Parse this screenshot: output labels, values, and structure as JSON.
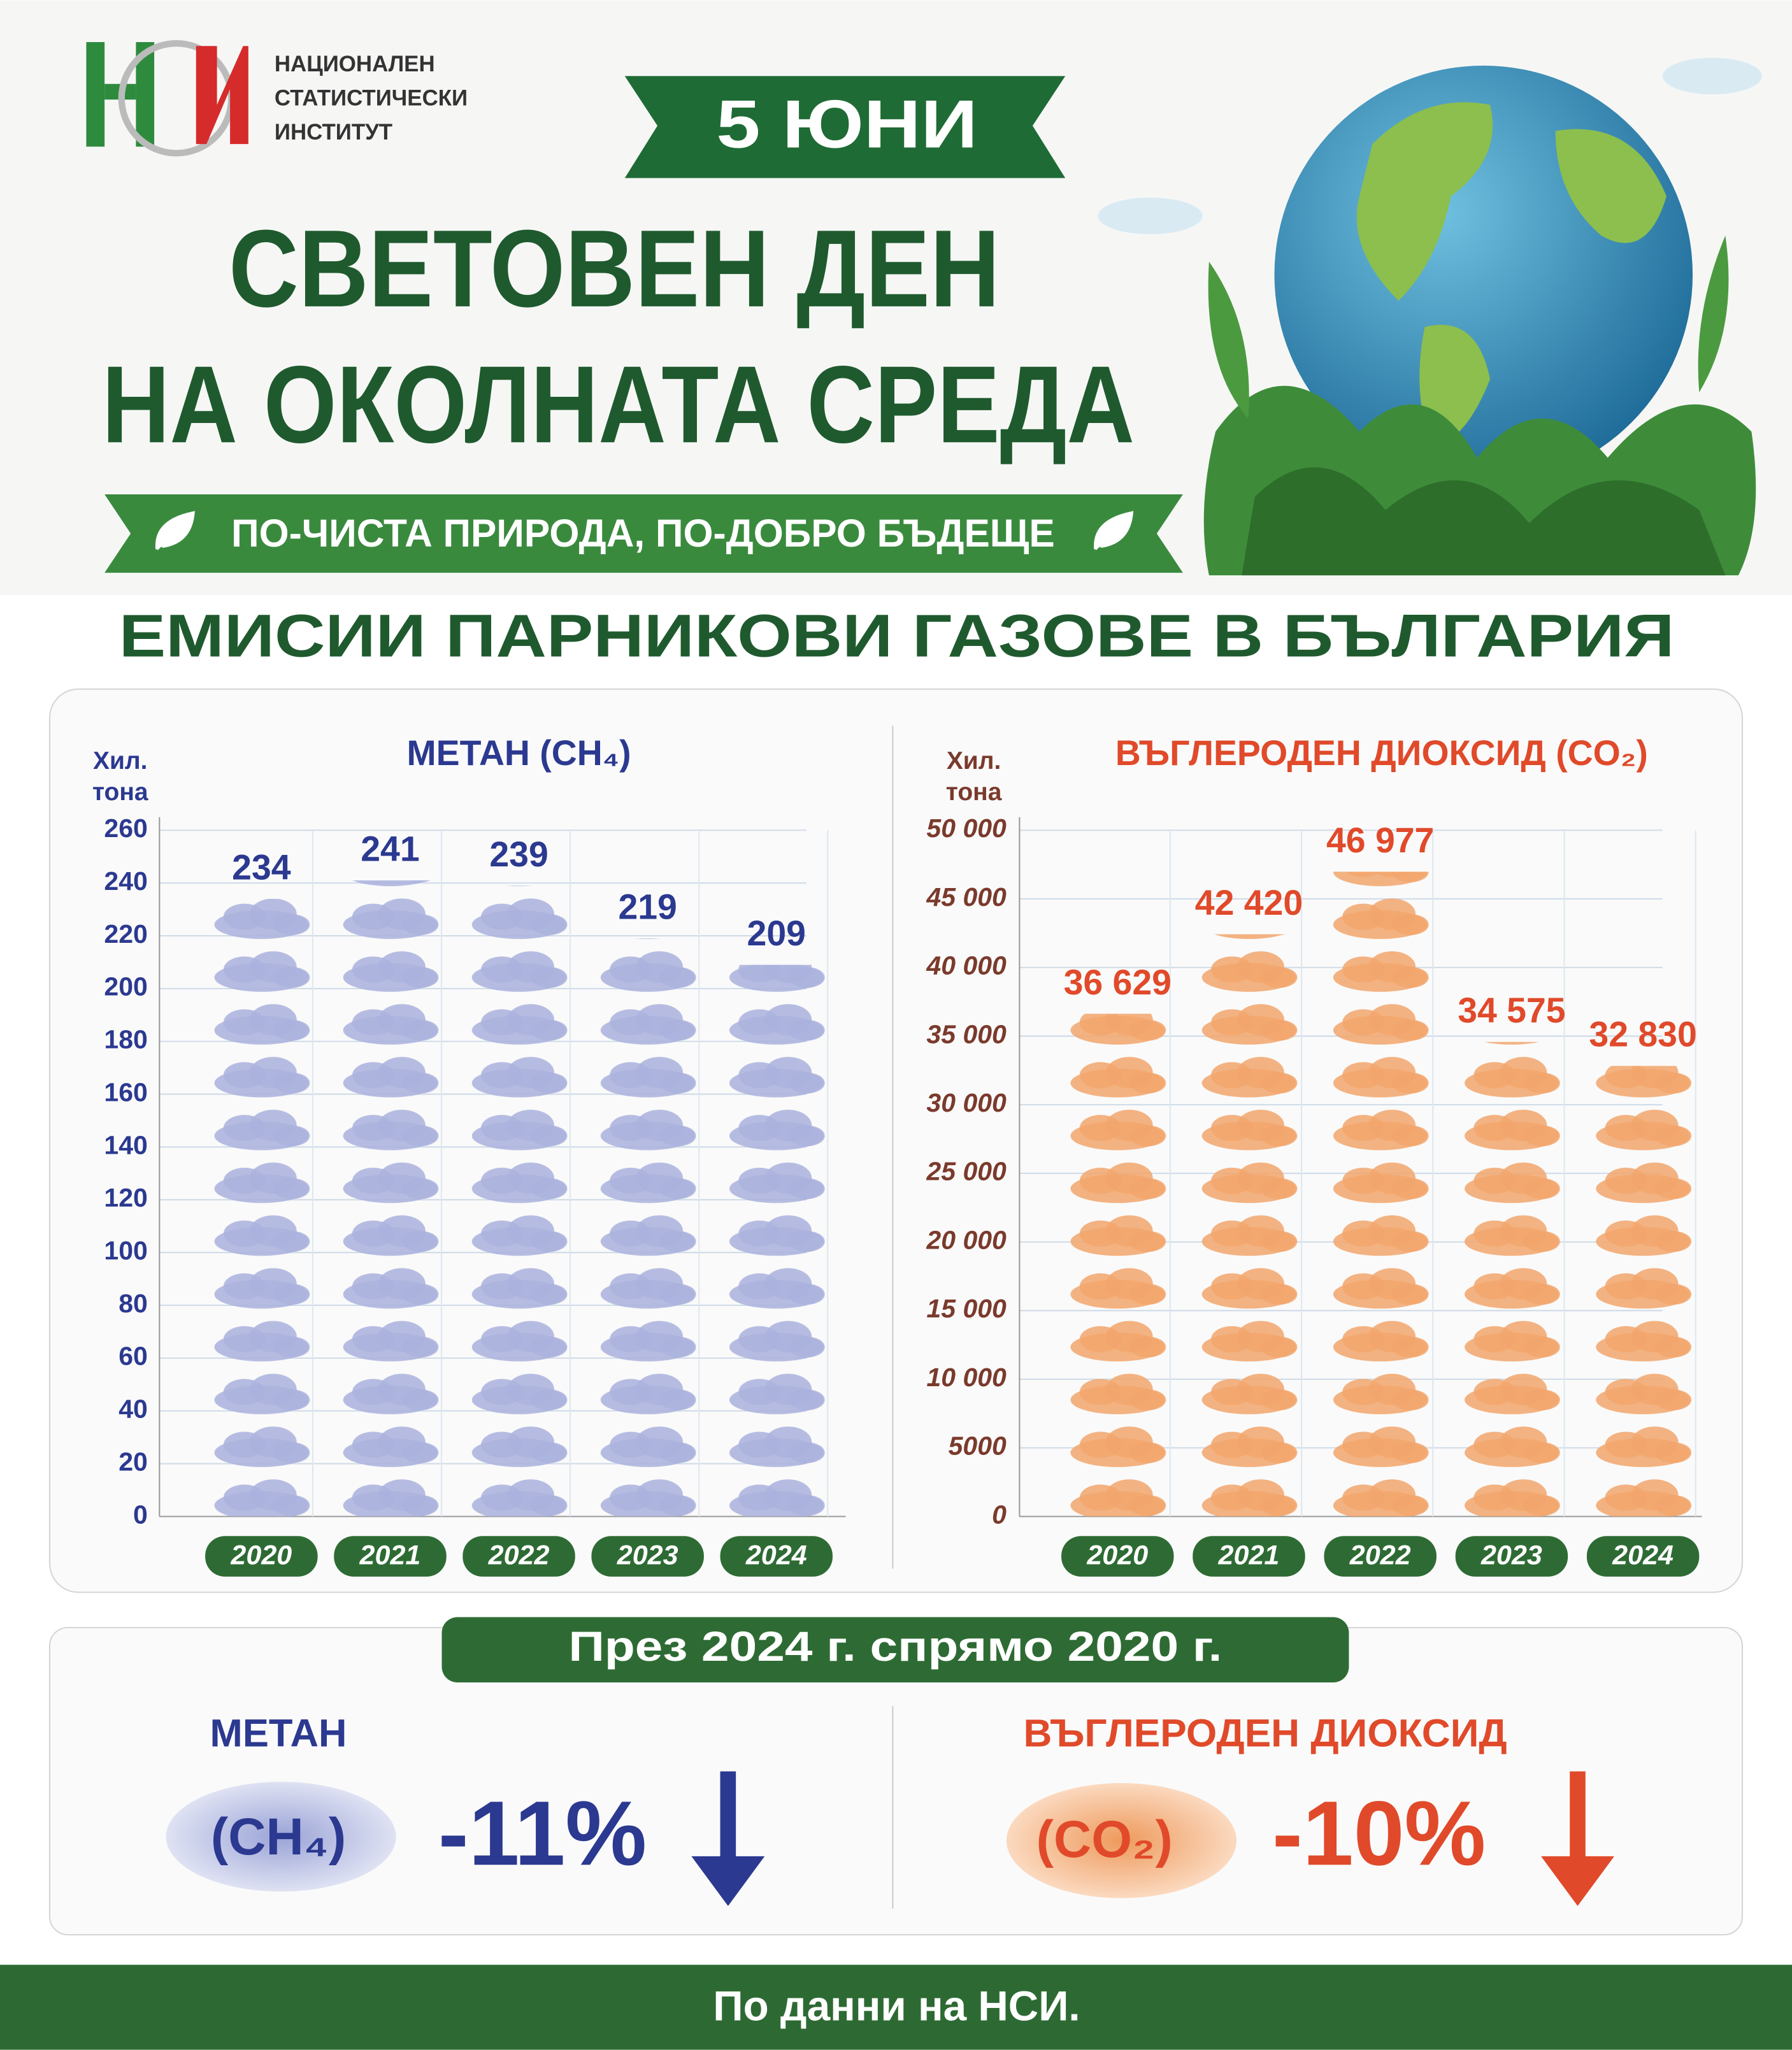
{
  "header": {
    "logo": [
      "НАЦИОНАЛЕН",
      "СТАТИСТИЧЕСКИ",
      "ИНСТИТУТ"
    ],
    "date": "5 ЮНИ",
    "title": [
      "СВЕТОВЕН ДЕН",
      "НА ОКОЛНАТА СРЕДА"
    ],
    "slogan": "ПО-ЧИСТА ПРИРОДА, ПО-ДОБРО БЪДЕЩЕ",
    "headline": "ЕМИСИИ ПАРНИКОВИ ГАЗОВЕ В БЪЛГАРИЯ"
  },
  "chart_data": [
    {
      "type": "bar",
      "title": "МЕТАН (CH₄)",
      "ylabel": [
        "Хил.",
        "тона"
      ],
      "categories": [
        "2020",
        "2021",
        "2022",
        "2023",
        "2024"
      ],
      "values": [
        234,
        241,
        239,
        219,
        209
      ],
      "color": "#aab2dd",
      "ylim": [
        0,
        260
      ],
      "yticks": [
        0,
        20,
        40,
        60,
        80,
        100,
        120,
        140,
        160,
        180,
        200,
        220,
        240,
        260
      ],
      "grid": true
    },
    {
      "type": "bar",
      "title": "ВЪГЛЕРОДЕН ДИОКСИД (CO₂)",
      "ylabel": [
        "Хил.",
        "тона"
      ],
      "categories": [
        "2020",
        "2021",
        "2022",
        "2023",
        "2024"
      ],
      "values": [
        36629,
        42420,
        46977,
        34575,
        32830
      ],
      "value_labels": [
        "36 629",
        "42 420",
        "46 977",
        "34 575",
        "32 830"
      ],
      "color": "#f2a66c",
      "ylim": [
        0,
        50000
      ],
      "yticks": [
        0,
        5000,
        {
          "value": 10000,
          "label": "10 000"
        },
        {
          "value": 15000,
          "label": "15 000"
        },
        {
          "value": 20000,
          "label": "20 000"
        },
        {
          "value": 25000,
          "label": "25 000"
        },
        {
          "value": 30000,
          "label": "30 000"
        },
        {
          "value": 35000,
          "label": "35 000"
        },
        {
          "value": 40000,
          "label": "40 000"
        },
        {
          "value": 45000,
          "label": "45 000"
        },
        {
          "value": 50000,
          "label": "50 000"
        }
      ],
      "grid": true
    }
  ],
  "summary": {
    "heading": "През 2024 г. спрямо 2020 г.",
    "items": [
      {
        "name": "МЕТАН",
        "formula": "(CH₄)",
        "change": "-11%"
      },
      {
        "name": "ВЪГЛЕРОДЕН ДИОКСИД",
        "formula": "(CO₂)",
        "change": "-10%"
      }
    ]
  },
  "footer": "По данни на НСИ."
}
